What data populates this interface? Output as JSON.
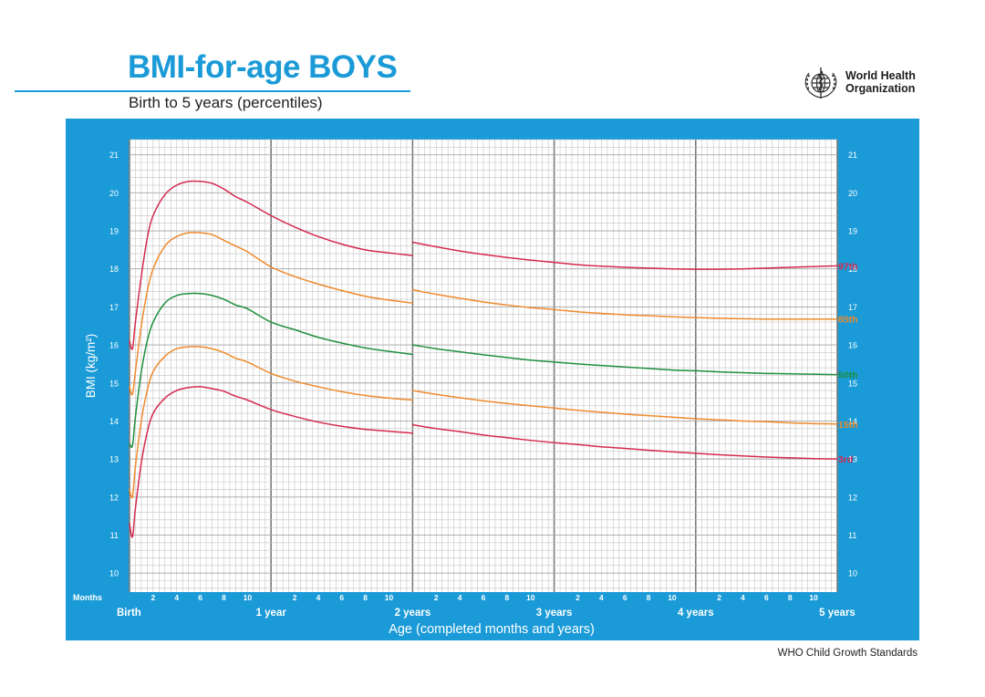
{
  "page": {
    "title": "BMI-for-age BOYS",
    "subtitle": "Birth to 5 years (percentiles)",
    "org_name_line1": "World Health",
    "org_name_line2": "Organization",
    "org_logo_icon": "who-emblem-icon",
    "footer": "WHO Child Growth Standards"
  },
  "colors": {
    "brand_blue": "#1a9ad7",
    "grid_fine": "#c4c4c4",
    "grid_major": "#7a7a7a",
    "red": "#d42a4e",
    "orange": "#ef8a2c",
    "green": "#1f8f3c"
  },
  "chart_data": {
    "type": "line",
    "title": "BMI-for-age BOYS",
    "subtitle": "Birth to 5 years (percentiles)",
    "xlabel": "Age (completed months and years)",
    "ylabel": "BMI (kg/m²)",
    "x_unit_label": "Months",
    "xlim": [
      0,
      60
    ],
    "ylim": [
      9.5,
      21.4
    ],
    "y_ticks": [
      "10",
      "11",
      "12",
      "13",
      "14",
      "15",
      "16",
      "17",
      "18",
      "19",
      "20",
      "21"
    ],
    "x_minor_ticks": [
      {
        "x": 2,
        "label": "2"
      },
      {
        "x": 4,
        "label": "4"
      },
      {
        "x": 6,
        "label": "6"
      },
      {
        "x": 8,
        "label": "8"
      },
      {
        "x": 10,
        "label": "10"
      },
      {
        "x": 14,
        "label": "2"
      },
      {
        "x": 16,
        "label": "4"
      },
      {
        "x": 18,
        "label": "6"
      },
      {
        "x": 20,
        "label": "8"
      },
      {
        "x": 22,
        "label": "10"
      },
      {
        "x": 26,
        "label": "2"
      },
      {
        "x": 28,
        "label": "4"
      },
      {
        "x": 30,
        "label": "6"
      },
      {
        "x": 32,
        "label": "8"
      },
      {
        "x": 34,
        "label": "10"
      },
      {
        "x": 38,
        "label": "2"
      },
      {
        "x": 40,
        "label": "4"
      },
      {
        "x": 42,
        "label": "6"
      },
      {
        "x": 44,
        "label": "8"
      },
      {
        "x": 46,
        "label": "10"
      },
      {
        "x": 50,
        "label": "2"
      },
      {
        "x": 52,
        "label": "4"
      },
      {
        "x": 54,
        "label": "6"
      },
      {
        "x": 56,
        "label": "8"
      },
      {
        "x": 58,
        "label": "10"
      }
    ],
    "x_major_ticks": [
      {
        "x": 0,
        "label": "Birth"
      },
      {
        "x": 12,
        "label": "1 year"
      },
      {
        "x": 24,
        "label": "2 years"
      },
      {
        "x": 36,
        "label": "3 years"
      },
      {
        "x": 48,
        "label": "4 years"
      },
      {
        "x": 60,
        "label": "5 years"
      }
    ],
    "grid": true,
    "break_at_x": 24,
    "series": [
      {
        "name": "97th",
        "color": "#d42a4e",
        "segments": [
          [
            [
              0,
              16.1
            ],
            [
              0.25,
              15.9
            ],
            [
              0.5,
              16.6
            ],
            [
              1,
              17.8
            ],
            [
              1.5,
              18.8
            ],
            [
              2,
              19.4
            ],
            [
              3,
              19.95
            ],
            [
              4,
              20.2
            ],
            [
              5,
              20.3
            ],
            [
              6,
              20.3
            ],
            [
              7,
              20.25
            ],
            [
              8,
              20.1
            ],
            [
              9,
              19.9
            ],
            [
              10,
              19.75
            ],
            [
              12,
              19.4
            ],
            [
              14,
              19.1
            ],
            [
              16,
              18.85
            ],
            [
              18,
              18.65
            ],
            [
              20,
              18.5
            ],
            [
              22,
              18.42
            ],
            [
              24,
              18.35
            ]
          ],
          [
            [
              24,
              18.7
            ],
            [
              26,
              18.58
            ],
            [
              28,
              18.47
            ],
            [
              30,
              18.38
            ],
            [
              32,
              18.3
            ],
            [
              34,
              18.23
            ],
            [
              36,
              18.17
            ],
            [
              38,
              18.11
            ],
            [
              40,
              18.07
            ],
            [
              42,
              18.04
            ],
            [
              44,
              18.02
            ],
            [
              46,
              18.0
            ],
            [
              48,
              17.99
            ],
            [
              50,
              17.99
            ],
            [
              52,
              18.0
            ],
            [
              54,
              18.02
            ],
            [
              56,
              18.04
            ],
            [
              58,
              18.06
            ],
            [
              60,
              18.08
            ]
          ]
        ]
      },
      {
        "name": "85th",
        "color": "#ef8a2c",
        "segments": [
          [
            [
              0,
              14.9
            ],
            [
              0.25,
              14.7
            ],
            [
              0.5,
              15.3
            ],
            [
              1,
              16.5
            ],
            [
              1.5,
              17.4
            ],
            [
              2,
              18.0
            ],
            [
              3,
              18.6
            ],
            [
              4,
              18.85
            ],
            [
              5,
              18.95
            ],
            [
              6,
              18.95
            ],
            [
              7,
              18.9
            ],
            [
              8,
              18.75
            ],
            [
              9,
              18.6
            ],
            [
              10,
              18.45
            ],
            [
              12,
              18.05
            ],
            [
              14,
              17.8
            ],
            [
              16,
              17.6
            ],
            [
              18,
              17.43
            ],
            [
              20,
              17.28
            ],
            [
              22,
              17.18
            ],
            [
              24,
              17.1
            ]
          ],
          [
            [
              24,
              17.45
            ],
            [
              26,
              17.33
            ],
            [
              28,
              17.23
            ],
            [
              30,
              17.13
            ],
            [
              32,
              17.05
            ],
            [
              34,
              16.98
            ],
            [
              36,
              16.93
            ],
            [
              38,
              16.87
            ],
            [
              40,
              16.83
            ],
            [
              42,
              16.79
            ],
            [
              44,
              16.77
            ],
            [
              46,
              16.74
            ],
            [
              48,
              16.72
            ],
            [
              50,
              16.7
            ],
            [
              52,
              16.69
            ],
            [
              54,
              16.68
            ],
            [
              56,
              16.68
            ],
            [
              58,
              16.68
            ],
            [
              60,
              16.68
            ]
          ]
        ]
      },
      {
        "name": "50th",
        "color": "#1f8f3c",
        "segments": [
          [
            [
              0,
              13.4
            ],
            [
              0.25,
              13.35
            ],
            [
              0.5,
              14.1
            ],
            [
              1,
              15.3
            ],
            [
              1.5,
              16.1
            ],
            [
              2,
              16.6
            ],
            [
              3,
              17.1
            ],
            [
              4,
              17.3
            ],
            [
              5,
              17.35
            ],
            [
              6,
              17.35
            ],
            [
              7,
              17.3
            ],
            [
              8,
              17.2
            ],
            [
              9,
              17.05
            ],
            [
              10,
              16.95
            ],
            [
              12,
              16.6
            ],
            [
              14,
              16.4
            ],
            [
              16,
              16.2
            ],
            [
              18,
              16.05
            ],
            [
              20,
              15.92
            ],
            [
              22,
              15.83
            ],
            [
              24,
              15.75
            ]
          ],
          [
            [
              24,
              16.0
            ],
            [
              26,
              15.9
            ],
            [
              28,
              15.82
            ],
            [
              30,
              15.74
            ],
            [
              32,
              15.67
            ],
            [
              34,
              15.6
            ],
            [
              36,
              15.55
            ],
            [
              38,
              15.5
            ],
            [
              40,
              15.46
            ],
            [
              42,
              15.42
            ],
            [
              44,
              15.38
            ],
            [
              46,
              15.34
            ],
            [
              48,
              15.32
            ],
            [
              50,
              15.29
            ],
            [
              52,
              15.27
            ],
            [
              54,
              15.25
            ],
            [
              56,
              15.24
            ],
            [
              58,
              15.23
            ],
            [
              60,
              15.22
            ]
          ]
        ]
      },
      {
        "name": "15th",
        "color": "#ef8a2c",
        "segments": [
          [
            [
              0,
              12.2
            ],
            [
              0.25,
              12.0
            ],
            [
              0.5,
              12.8
            ],
            [
              1,
              14.0
            ],
            [
              1.5,
              14.8
            ],
            [
              2,
              15.3
            ],
            [
              3,
              15.7
            ],
            [
              4,
              15.9
            ],
            [
              5,
              15.95
            ],
            [
              6,
              15.95
            ],
            [
              7,
              15.9
            ],
            [
              8,
              15.8
            ],
            [
              9,
              15.65
            ],
            [
              10,
              15.55
            ],
            [
              12,
              15.25
            ],
            [
              14,
              15.05
            ],
            [
              16,
              14.9
            ],
            [
              18,
              14.77
            ],
            [
              20,
              14.67
            ],
            [
              22,
              14.6
            ],
            [
              24,
              14.55
            ]
          ],
          [
            [
              24,
              14.8
            ],
            [
              26,
              14.7
            ],
            [
              28,
              14.61
            ],
            [
              30,
              14.53
            ],
            [
              32,
              14.46
            ],
            [
              34,
              14.4
            ],
            [
              36,
              14.34
            ],
            [
              38,
              14.28
            ],
            [
              40,
              14.23
            ],
            [
              42,
              14.18
            ],
            [
              44,
              14.14
            ],
            [
              46,
              14.1
            ],
            [
              48,
              14.06
            ],
            [
              50,
              14.03
            ],
            [
              52,
              14.0
            ],
            [
              54,
              13.98
            ],
            [
              56,
              13.95
            ],
            [
              58,
              13.93
            ],
            [
              60,
              13.92
            ]
          ]
        ]
      },
      {
        "name": "3rd",
        "color": "#d42a4e",
        "segments": [
          [
            [
              0,
              11.3
            ],
            [
              0.25,
              10.95
            ],
            [
              0.5,
              11.7
            ],
            [
              1,
              12.9
            ],
            [
              1.5,
              13.7
            ],
            [
              2,
              14.2
            ],
            [
              3,
              14.6
            ],
            [
              4,
              14.8
            ],
            [
              5,
              14.88
            ],
            [
              6,
              14.9
            ],
            [
              7,
              14.85
            ],
            [
              8,
              14.78
            ],
            [
              9,
              14.65
            ],
            [
              10,
              14.55
            ],
            [
              12,
              14.3
            ],
            [
              14,
              14.12
            ],
            [
              16,
              13.97
            ],
            [
              18,
              13.86
            ],
            [
              20,
              13.78
            ],
            [
              22,
              13.73
            ],
            [
              24,
              13.68
            ]
          ],
          [
            [
              24,
              13.9
            ],
            [
              26,
              13.8
            ],
            [
              28,
              13.72
            ],
            [
              30,
              13.63
            ],
            [
              32,
              13.56
            ],
            [
              34,
              13.49
            ],
            [
              36,
              13.43
            ],
            [
              38,
              13.38
            ],
            [
              40,
              13.32
            ],
            [
              42,
              13.28
            ],
            [
              44,
              13.23
            ],
            [
              46,
              13.19
            ],
            [
              48,
              13.15
            ],
            [
              50,
              13.11
            ],
            [
              52,
              13.08
            ],
            [
              54,
              13.05
            ],
            [
              56,
              13.03
            ],
            [
              58,
              13.01
            ],
            [
              60,
              13.0
            ]
          ]
        ]
      }
    ]
  }
}
